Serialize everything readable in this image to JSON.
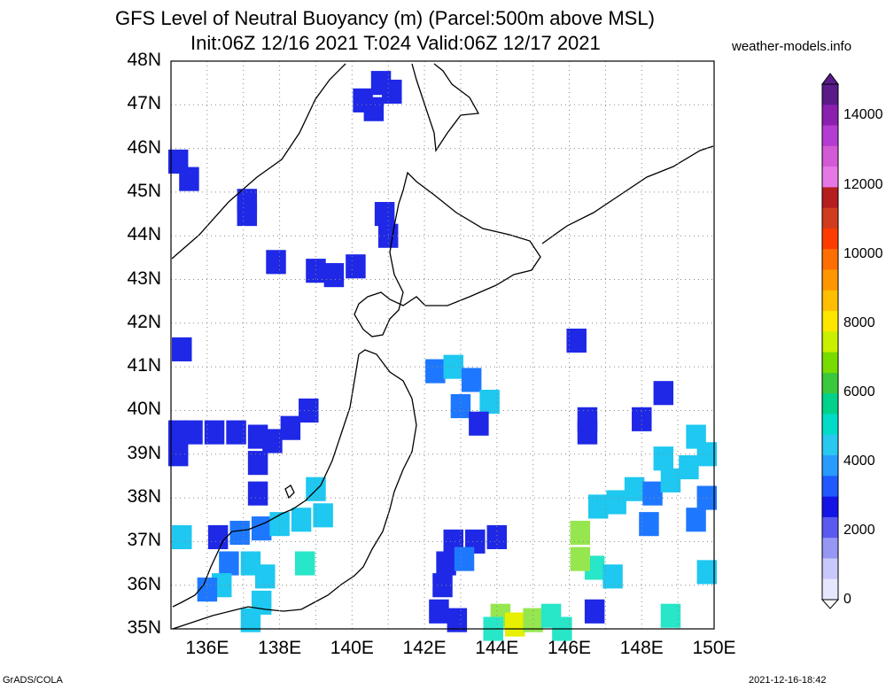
{
  "title_line1": "GFS Level of Neutral Buoyancy (m) (Parcel:500m above MSL)",
  "title_line2": "Init:06Z 12/16 2021 T:024 Valid:06Z 12/17 2021",
  "site": "weather-models.info",
  "footer_left": "GrADS/COLA",
  "footer_right": "2021-12-16-18:42",
  "lat_labels": [
    "48N",
    "47N",
    "46N",
    "45N",
    "44N",
    "43N",
    "42N",
    "41N",
    "40N",
    "39N",
    "38N",
    "37N",
    "36N",
    "35N"
  ],
  "lon_labels": [
    "136E",
    "138E",
    "140E",
    "142E",
    "144E",
    "146E",
    "148E",
    "150E"
  ],
  "colorbar": {
    "labels": [
      "14000",
      "12000",
      "10000",
      "8000",
      "6000",
      "4000",
      "2000",
      "0"
    ],
    "colors": [
      "#5a1a8a",
      "#8a1fb0",
      "#b43cd2",
      "#d25ad7",
      "#e678e6",
      "#b41e1e",
      "#d23c1e",
      "#ff3c00",
      "#ff6e00",
      "#ff9600",
      "#ffbe00",
      "#ffe600",
      "#c8f000",
      "#78dc00",
      "#3cc83c",
      "#00d28c",
      "#00dcc8",
      "#28c8f0",
      "#289bff",
      "#1e5aff",
      "#1414e6",
      "#5a5af0",
      "#9696f5",
      "#c8c8fa",
      "#e6e6ff"
    ]
  },
  "map": {
    "lon_range": [
      135,
      150
    ],
    "lat_range": [
      35,
      48
    ],
    "grid": true,
    "cells": [
      {
        "lon": 135.2,
        "lat": 45.7,
        "lv": 3
      },
      {
        "lon": 135.5,
        "lat": 45.3,
        "lv": 3
      },
      {
        "lon": 137.1,
        "lat": 44.8,
        "lv": 3
      },
      {
        "lon": 137.1,
        "lat": 44.5,
        "lv": 3
      },
      {
        "lon": 137.9,
        "lat": 43.4,
        "lv": 3
      },
      {
        "lon": 140.8,
        "lat": 47.5,
        "lv": 3
      },
      {
        "lon": 141.1,
        "lat": 47.3,
        "lv": 3
      },
      {
        "lon": 140.3,
        "lat": 47.1,
        "lv": 3
      },
      {
        "lon": 140.6,
        "lat": 46.9,
        "lv": 3
      },
      {
        "lon": 140.9,
        "lat": 44.5,
        "lv": 3
      },
      {
        "lon": 141.0,
        "lat": 44.0,
        "lv": 3
      },
      {
        "lon": 139.0,
        "lat": 43.2,
        "lv": 3
      },
      {
        "lon": 139.5,
        "lat": 43.1,
        "lv": 3
      },
      {
        "lon": 140.1,
        "lat": 43.3,
        "lv": 3
      },
      {
        "lon": 135.3,
        "lat": 41.4,
        "lv": 3
      },
      {
        "lon": 135.2,
        "lat": 39.5,
        "lv": 3
      },
      {
        "lon": 135.6,
        "lat": 39.5,
        "lv": 3
      },
      {
        "lon": 136.2,
        "lat": 39.5,
        "lv": 3
      },
      {
        "lon": 136.8,
        "lat": 39.5,
        "lv": 3
      },
      {
        "lon": 137.4,
        "lat": 39.4,
        "lv": 3
      },
      {
        "lon": 137.8,
        "lat": 39.3,
        "lv": 3
      },
      {
        "lon": 138.3,
        "lat": 39.6,
        "lv": 3
      },
      {
        "lon": 138.8,
        "lat": 40.0,
        "lv": 3
      },
      {
        "lon": 135.2,
        "lat": 39.0,
        "lv": 3
      },
      {
        "lon": 137.4,
        "lat": 38.8,
        "lv": 3
      },
      {
        "lon": 142.3,
        "lat": 40.9,
        "lv": 2
      },
      {
        "lon": 142.8,
        "lat": 41.0,
        "lv": 1
      },
      {
        "lon": 143.3,
        "lat": 40.7,
        "lv": 2
      },
      {
        "lon": 143.8,
        "lat": 40.2,
        "lv": 1
      },
      {
        "lon": 143.0,
        "lat": 40.1,
        "lv": 2
      },
      {
        "lon": 143.5,
        "lat": 39.7,
        "lv": 3
      },
      {
        "lon": 148.0,
        "lat": 39.8,
        "lv": 3
      },
      {
        "lon": 146.5,
        "lat": 39.8,
        "lv": 3
      },
      {
        "lon": 136.3,
        "lat": 37.1,
        "lv": 3
      },
      {
        "lon": 136.9,
        "lat": 37.2,
        "lv": 2
      },
      {
        "lon": 137.5,
        "lat": 37.3,
        "lv": 2
      },
      {
        "lon": 138.0,
        "lat": 37.4,
        "lv": 1
      },
      {
        "lon": 138.6,
        "lat": 37.5,
        "lv": 1
      },
      {
        "lon": 139.2,
        "lat": 37.6,
        "lv": 1
      },
      {
        "lon": 135.3,
        "lat": 37.1,
        "lv": 1
      },
      {
        "lon": 136.6,
        "lat": 36.5,
        "lv": 2
      },
      {
        "lon": 137.2,
        "lat": 36.5,
        "lv": 1
      },
      {
        "lon": 137.6,
        "lat": 36.2,
        "lv": 1
      },
      {
        "lon": 136.4,
        "lat": 36.0,
        "lv": 1
      },
      {
        "lon": 136.0,
        "lat": 35.9,
        "lv": 2
      },
      {
        "lon": 137.5,
        "lat": 35.6,
        "lv": 1
      },
      {
        "lon": 137.2,
        "lat": 35.2,
        "lv": 1
      },
      {
        "lon": 138.7,
        "lat": 36.5,
        "lv": 0
      },
      {
        "lon": 142.8,
        "lat": 37.0,
        "lv": 3
      },
      {
        "lon": 143.4,
        "lat": 37.0,
        "lv": 3
      },
      {
        "lon": 144.0,
        "lat": 37.1,
        "lv": 3
      },
      {
        "lon": 142.6,
        "lat": 36.5,
        "lv": 3
      },
      {
        "lon": 143.1,
        "lat": 36.6,
        "lv": 2
      },
      {
        "lon": 142.5,
        "lat": 36.0,
        "lv": 3
      },
      {
        "lon": 142.4,
        "lat": 35.4,
        "lv": 3
      },
      {
        "lon": 142.9,
        "lat": 35.2,
        "lv": 3
      },
      {
        "lon": 144.1,
        "lat": 35.3,
        "lv": -1
      },
      {
        "lon": 144.5,
        "lat": 35.1,
        "lv": -2
      },
      {
        "lon": 145.0,
        "lat": 35.2,
        "lv": -1
      },
      {
        "lon": 145.5,
        "lat": 35.3,
        "lv": 0
      },
      {
        "lon": 143.9,
        "lat": 35.0,
        "lv": 0
      },
      {
        "lon": 145.8,
        "lat": 35.0,
        "lv": 0
      },
      {
        "lon": 146.3,
        "lat": 37.2,
        "lv": -1
      },
      {
        "lon": 146.7,
        "lat": 36.4,
        "lv": 0
      },
      {
        "lon": 146.3,
        "lat": 36.6,
        "lv": -1
      },
      {
        "lon": 147.2,
        "lat": 36.2,
        "lv": 1
      },
      {
        "lon": 146.8,
        "lat": 37.8,
        "lv": 1
      },
      {
        "lon": 147.3,
        "lat": 37.9,
        "lv": 1
      },
      {
        "lon": 147.8,
        "lat": 38.2,
        "lv": 1
      },
      {
        "lon": 148.3,
        "lat": 38.1,
        "lv": 2
      },
      {
        "lon": 148.8,
        "lat": 38.4,
        "lv": 1
      },
      {
        "lon": 149.3,
        "lat": 38.7,
        "lv": 1
      },
      {
        "lon": 149.8,
        "lat": 39.0,
        "lv": 1
      },
      {
        "lon": 149.5,
        "lat": 39.4,
        "lv": 1
      },
      {
        "lon": 148.6,
        "lat": 38.9,
        "lv": 1
      },
      {
        "lon": 149.8,
        "lat": 38.0,
        "lv": 2
      },
      {
        "lon": 149.5,
        "lat": 37.5,
        "lv": 2
      },
      {
        "lon": 148.2,
        "lat": 37.4,
        "lv": 2
      },
      {
        "lon": 149.8,
        "lat": 36.3,
        "lv": 1
      },
      {
        "lon": 148.8,
        "lat": 35.3,
        "lv": 0
      },
      {
        "lon": 146.7,
        "lat": 35.4,
        "lv": 3
      },
      {
        "lon": 146.2,
        "lat": 41.6,
        "lv": 3
      },
      {
        "lon": 146.5,
        "lat": 39.5,
        "lv": 3
      },
      {
        "lon": 148.6,
        "lat": 40.4,
        "lv": 3
      },
      {
        "lon": 137.4,
        "lat": 38.1,
        "lv": 3
      },
      {
        "lon": 139.0,
        "lat": 38.2,
        "lv": 1
      }
    ]
  }
}
